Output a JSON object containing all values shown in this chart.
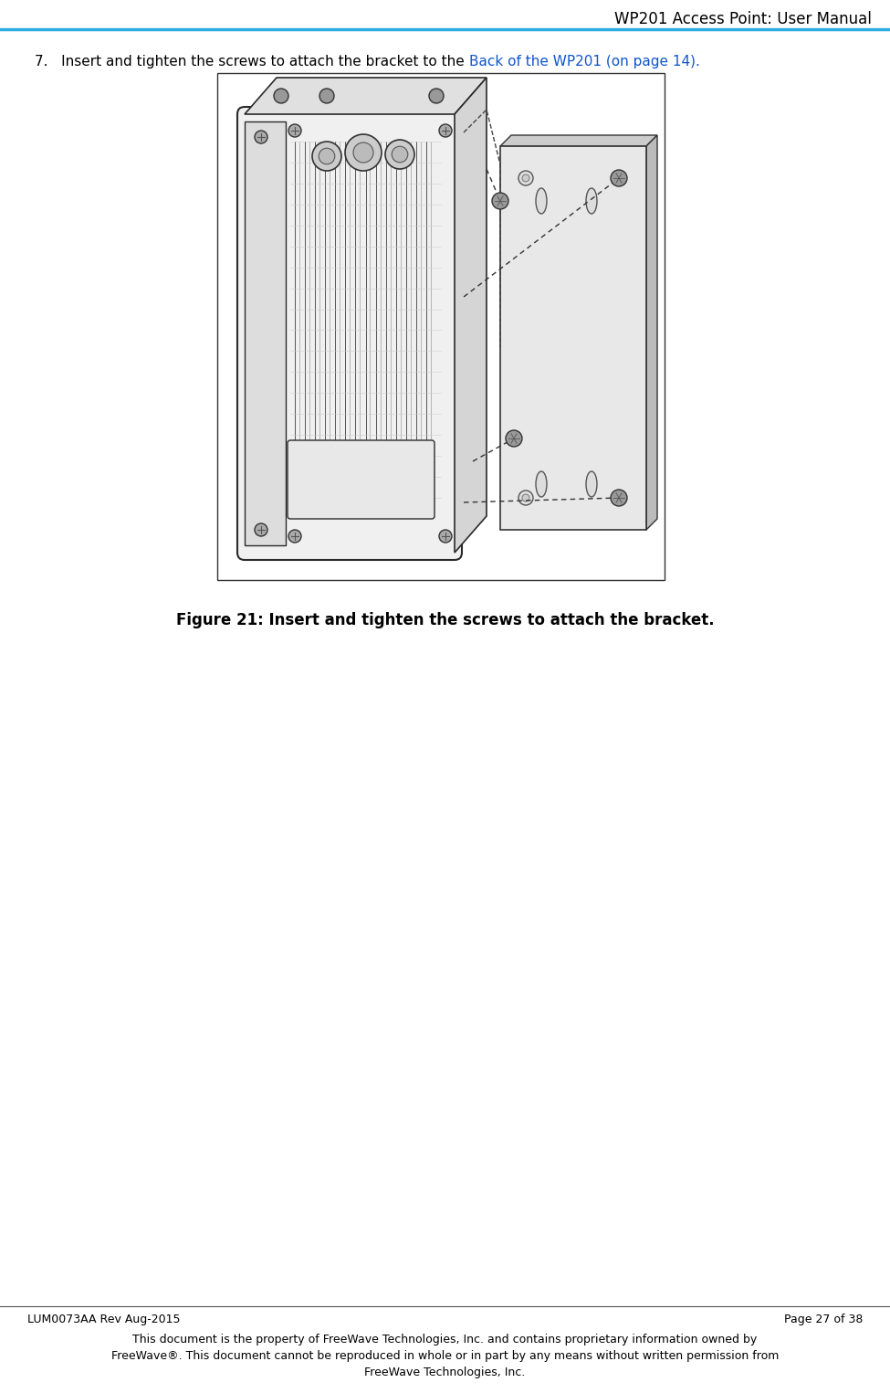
{
  "page_title": "WP201 Access Point: User Manual",
  "header_line_color": "#29ABE2",
  "step_plain": "7.   Insert and tighten the screws to attach the bracket to the ",
  "step_link": "Back of the WP201 (on page 14).",
  "step_link_color": "#1155CC",
  "figure_caption": "Figure 21: Insert and tighten the screws to attach the bracket.",
  "footer_left": "LUM0073AA Rev Aug-2015",
  "footer_right": "Page 27 of 38",
  "footer_line1": "This document is the property of FreeWave Technologies, Inc. and contains proprietary information owned by",
  "footer_line2": "FreeWave®. This document cannot be reproduced in whole or in part by any means without written permission from",
  "footer_line3": "FreeWave Technologies, Inc.",
  "bg_color": "#FFFFFF",
  "text_color": "#000000",
  "title_fontsize": 12,
  "body_fontsize": 11,
  "footer_fontsize": 9,
  "caption_fontsize": 12,
  "fig_width": 9.75,
  "fig_height": 15.25,
  "dpi": 100
}
